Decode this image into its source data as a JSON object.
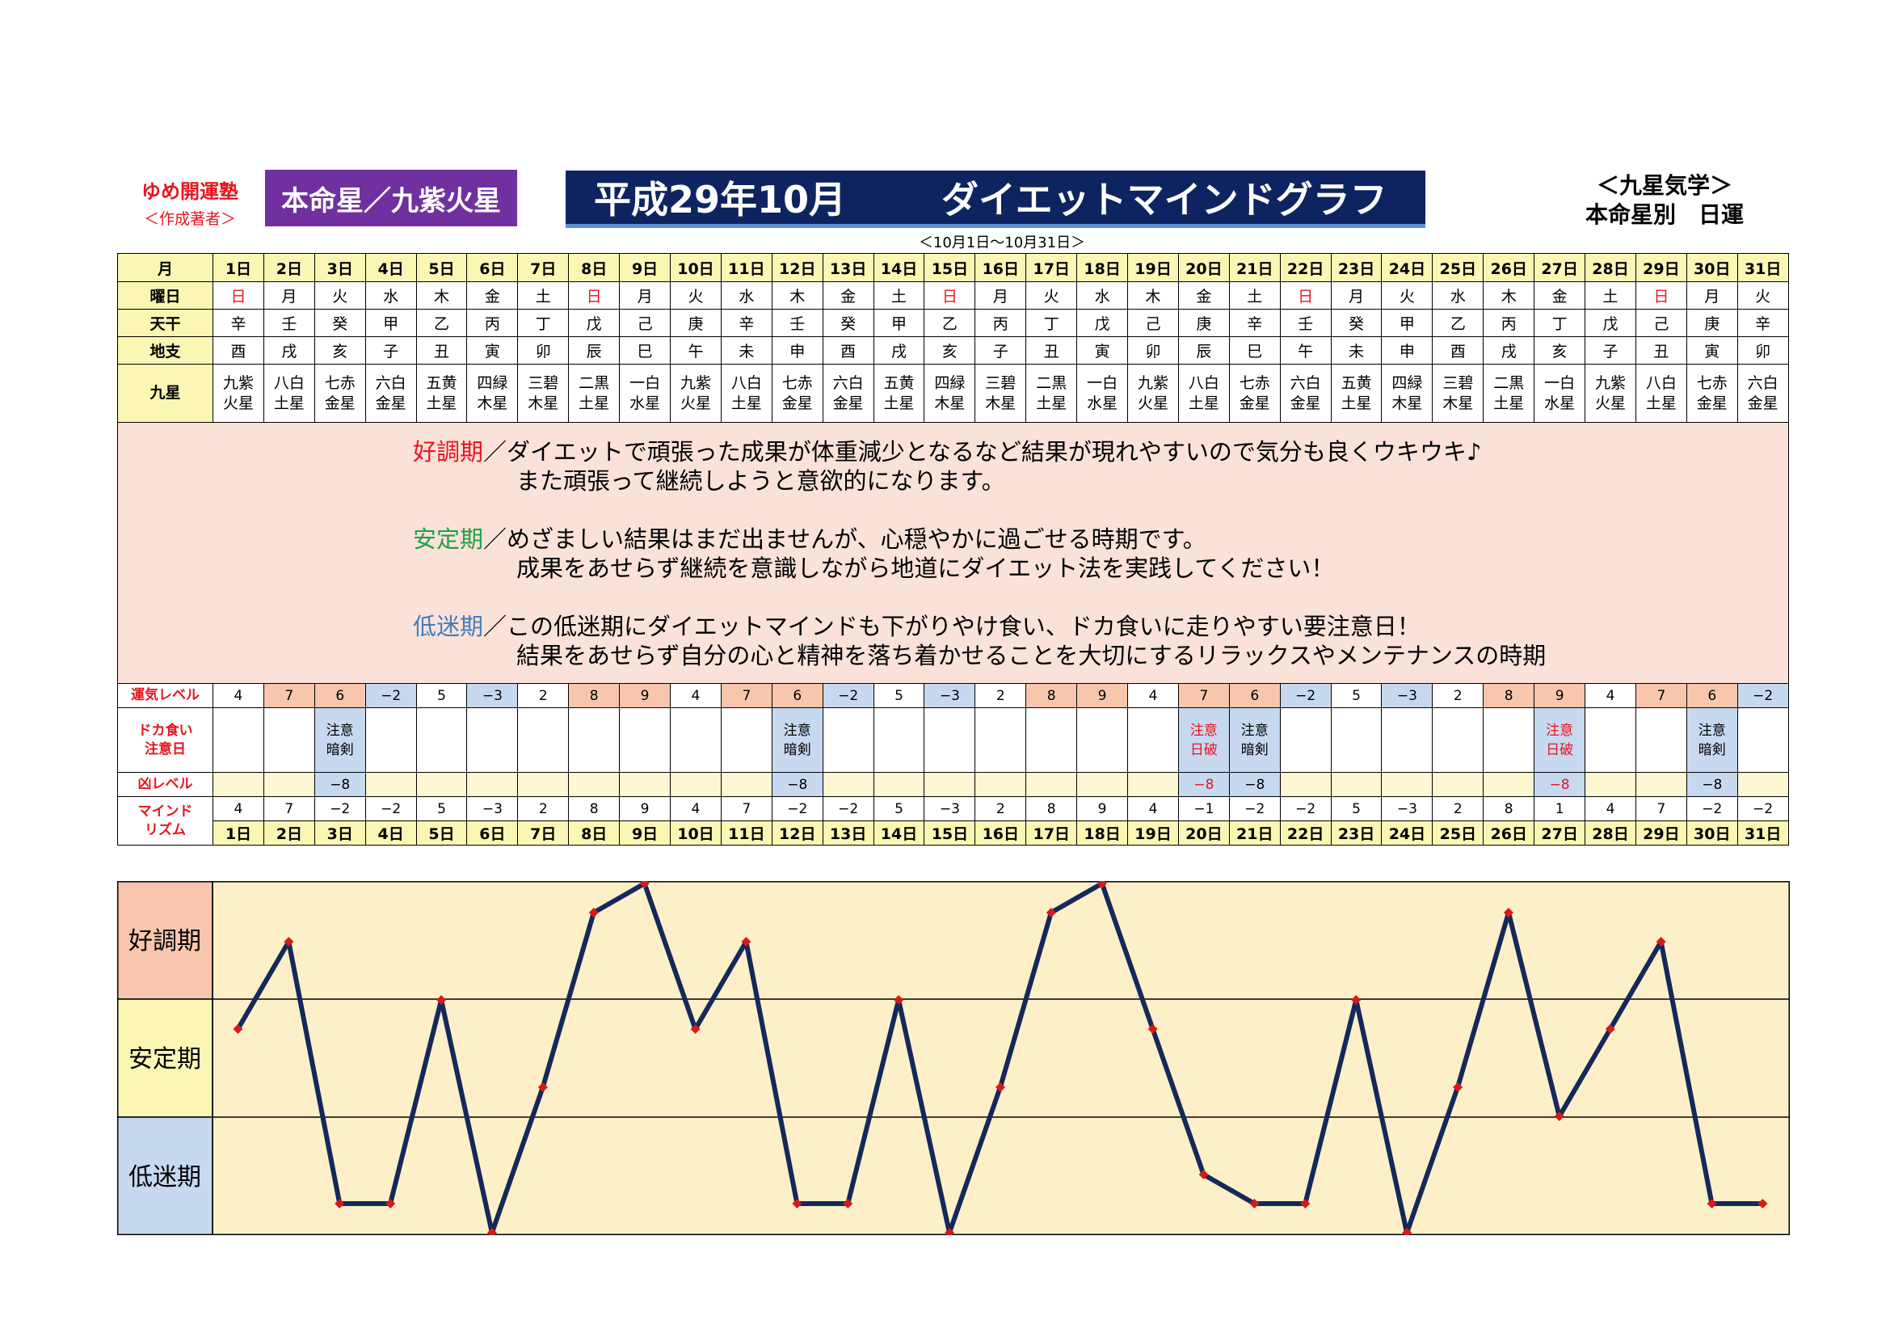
{
  "header": {
    "brand": "ゆめ開運塾",
    "brand_sub": "＜作成著者＞",
    "honmei_label": "本命星／九紫火星",
    "title_left": "平成29年10月",
    "title_right": "ダイエットマインドグラフ",
    "period": "＜10月1日〜10月31日＞",
    "corner_line1": "＜九星気学＞",
    "corner_line2": "本命星別　日運"
  },
  "row_labels": {
    "month": "月",
    "weekday": "曜日",
    "tenkan": "天干",
    "chishi": "地支",
    "kyusei": "九星",
    "unki": "運気レベル",
    "dokagui_1": "ドカ食い",
    "dokagui_2": "注意日",
    "kyo": "凶レベル",
    "mind_1": "マインド",
    "mind_2": "リズム"
  },
  "days": [
    {
      "date": "1日",
      "weekday": "日",
      "tenkan": "辛",
      "chishi": "酉",
      "star1": "九紫",
      "star2": "火星",
      "unki": "4",
      "warn1": "",
      "warn2": "",
      "kyo": "",
      "mind": 4
    },
    {
      "date": "2日",
      "weekday": "月",
      "tenkan": "壬",
      "chishi": "戌",
      "star1": "八白",
      "star2": "土星",
      "unki": "7",
      "warn1": "",
      "warn2": "",
      "kyo": "",
      "mind": 7
    },
    {
      "date": "3日",
      "weekday": "火",
      "tenkan": "癸",
      "chishi": "亥",
      "star1": "七赤",
      "star2": "金星",
      "unki": "6",
      "warn1": "注意",
      "warn2": "暗剣",
      "kyo": "−8",
      "mind": -2
    },
    {
      "date": "4日",
      "weekday": "水",
      "tenkan": "甲",
      "chishi": "子",
      "star1": "六白",
      "star2": "金星",
      "unki": "−2",
      "warn1": "",
      "warn2": "",
      "kyo": "",
      "mind": -2
    },
    {
      "date": "5日",
      "weekday": "木",
      "tenkan": "乙",
      "chishi": "丑",
      "star1": "五黄",
      "star2": "土星",
      "unki": "5",
      "warn1": "",
      "warn2": "",
      "kyo": "",
      "mind": 5
    },
    {
      "date": "6日",
      "weekday": "金",
      "tenkan": "丙",
      "chishi": "寅",
      "star1": "四緑",
      "star2": "木星",
      "unki": "−3",
      "warn1": "",
      "warn2": "",
      "kyo": "",
      "mind": -3
    },
    {
      "date": "7日",
      "weekday": "土",
      "tenkan": "丁",
      "chishi": "卯",
      "star1": "三碧",
      "star2": "木星",
      "unki": "2",
      "warn1": "",
      "warn2": "",
      "kyo": "",
      "mind": 2
    },
    {
      "date": "8日",
      "weekday": "日",
      "tenkan": "戊",
      "chishi": "辰",
      "star1": "二黒",
      "star2": "土星",
      "unki": "8",
      "warn1": "",
      "warn2": "",
      "kyo": "",
      "mind": 8
    },
    {
      "date": "9日",
      "weekday": "月",
      "tenkan": "己",
      "chishi": "巳",
      "star1": "一白",
      "star2": "水星",
      "unki": "9",
      "warn1": "",
      "warn2": "",
      "kyo": "",
      "mind": 9
    },
    {
      "date": "10日",
      "weekday": "火",
      "tenkan": "庚",
      "chishi": "午",
      "star1": "九紫",
      "star2": "火星",
      "unki": "4",
      "warn1": "",
      "warn2": "",
      "kyo": "",
      "mind": 4
    },
    {
      "date": "11日",
      "weekday": "水",
      "tenkan": "辛",
      "chishi": "未",
      "star1": "八白",
      "star2": "土星",
      "unki": "7",
      "warn1": "",
      "warn2": "",
      "kyo": "",
      "mind": 7
    },
    {
      "date": "12日",
      "weekday": "木",
      "tenkan": "壬",
      "chishi": "申",
      "star1": "七赤",
      "star2": "金星",
      "unki": "6",
      "warn1": "注意",
      "warn2": "暗剣",
      "kyo": "−8",
      "mind": -2
    },
    {
      "date": "13日",
      "weekday": "金",
      "tenkan": "癸",
      "chishi": "酉",
      "star1": "六白",
      "star2": "金星",
      "unki": "−2",
      "warn1": "",
      "warn2": "",
      "kyo": "",
      "mind": -2
    },
    {
      "date": "14日",
      "weekday": "土",
      "tenkan": "甲",
      "chishi": "戌",
      "star1": "五黄",
      "star2": "土星",
      "unki": "5",
      "warn1": "",
      "warn2": "",
      "kyo": "",
      "mind": 5
    },
    {
      "date": "15日",
      "weekday": "日",
      "tenkan": "乙",
      "chishi": "亥",
      "star1": "四緑",
      "star2": "木星",
      "unki": "−3",
      "warn1": "",
      "warn2": "",
      "kyo": "",
      "mind": -3
    },
    {
      "date": "16日",
      "weekday": "月",
      "tenkan": "丙",
      "chishi": "子",
      "star1": "三碧",
      "star2": "木星",
      "unki": "2",
      "warn1": "",
      "warn2": "",
      "kyo": "",
      "mind": 2
    },
    {
      "date": "17日",
      "weekday": "火",
      "tenkan": "丁",
      "chishi": "丑",
      "star1": "二黒",
      "star2": "土星",
      "unki": "8",
      "warn1": "",
      "warn2": "",
      "kyo": "",
      "mind": 8
    },
    {
      "date": "18日",
      "weekday": "水",
      "tenkan": "戊",
      "chishi": "寅",
      "star1": "一白",
      "star2": "水星",
      "unki": "9",
      "warn1": "",
      "warn2": "",
      "kyo": "",
      "mind": 9
    },
    {
      "date": "19日",
      "weekday": "木",
      "tenkan": "己",
      "chishi": "卯",
      "star1": "九紫",
      "star2": "火星",
      "unki": "4",
      "warn1": "",
      "warn2": "",
      "kyo": "",
      "mind": 4
    },
    {
      "date": "20日",
      "weekday": "金",
      "tenkan": "庚",
      "chishi": "辰",
      "star1": "八白",
      "star2": "土星",
      "unki": "7",
      "warn1": "注意",
      "warn2": "日破",
      "kyo": "−8",
      "mind": -1
    },
    {
      "date": "21日",
      "weekday": "土",
      "tenkan": "辛",
      "chishi": "巳",
      "star1": "七赤",
      "star2": "金星",
      "unki": "6",
      "warn1": "注意",
      "warn2": "暗剣",
      "kyo": "−8",
      "mind": -2
    },
    {
      "date": "22日",
      "weekday": "日",
      "tenkan": "壬",
      "chishi": "午",
      "star1": "六白",
      "star2": "金星",
      "unki": "−2",
      "warn1": "",
      "warn2": "",
      "kyo": "",
      "mind": -2
    },
    {
      "date": "23日",
      "weekday": "月",
      "tenkan": "癸",
      "chishi": "未",
      "star1": "五黄",
      "star2": "土星",
      "unki": "5",
      "warn1": "",
      "warn2": "",
      "kyo": "",
      "mind": 5
    },
    {
      "date": "24日",
      "weekday": "火",
      "tenkan": "甲",
      "chishi": "申",
      "star1": "四緑",
      "star2": "木星",
      "unki": "−3",
      "warn1": "",
      "warn2": "",
      "kyo": "",
      "mind": -3
    },
    {
      "date": "25日",
      "weekday": "水",
      "tenkan": "乙",
      "chishi": "酉",
      "star1": "三碧",
      "star2": "木星",
      "unki": "2",
      "warn1": "",
      "warn2": "",
      "kyo": "",
      "mind": 2
    },
    {
      "date": "26日",
      "weekday": "木",
      "tenkan": "丙",
      "chishi": "戌",
      "star1": "二黒",
      "star2": "土星",
      "unki": "8",
      "warn1": "",
      "warn2": "",
      "kyo": "",
      "mind": 8
    },
    {
      "date": "27日",
      "weekday": "金",
      "tenkan": "丁",
      "chishi": "亥",
      "star1": "一白",
      "star2": "水星",
      "unki": "9",
      "warn1": "注意",
      "warn2": "日破",
      "kyo": "−8",
      "mind": 1
    },
    {
      "date": "28日",
      "weekday": "土",
      "tenkan": "戊",
      "chishi": "子",
      "star1": "九紫",
      "star2": "火星",
      "unki": "4",
      "warn1": "",
      "warn2": "",
      "kyo": "",
      "mind": 4
    },
    {
      "date": "29日",
      "weekday": "日",
      "tenkan": "己",
      "chishi": "丑",
      "star1": "八白",
      "star2": "土星",
      "unki": "7",
      "warn1": "",
      "warn2": "",
      "kyo": "",
      "mind": 7
    },
    {
      "date": "30日",
      "weekday": "月",
      "tenkan": "庚",
      "chishi": "寅",
      "star1": "七赤",
      "star2": "金星",
      "unki": "6",
      "warn1": "注意",
      "warn2": "暗剣",
      "kyo": "−8",
      "mind": -2
    },
    {
      "date": "31日",
      "weekday": "火",
      "tenkan": "辛",
      "chishi": "卯",
      "star1": "六白",
      "star2": "金星",
      "unki": "−2",
      "warn1": "",
      "warn2": "",
      "kyo": "",
      "mind": -2
    }
  ],
  "description": {
    "good_label": "好調期",
    "good_line1": "／ダイエットで頑張った成果が体重減少となるなど結果が現れやすいので気分も良くウキウキ♪",
    "good_line2": "また頑張って継続しようと意欲的になります。",
    "stable_label": "安定期",
    "stable_line1": "／めざましい結果はまだ出ませんが、心穏やかに過ごせる時期です。",
    "stable_line2": "成果をあせらず継続を意識しながら地道にダイエット法を実践してください！",
    "low_label": "低迷期",
    "low_line1": "／この低迷期にダイエットマインドも下がりやけ食い、ドカ食いに走りやすい要注意日！",
    "low_line2": "結果をあせらず自分の心と精神を落ち着かせることを大切にするリラックスやメンテナンスの時期"
  },
  "chart_data": {
    "type": "line",
    "categories": [
      "1日",
      "2日",
      "3日",
      "4日",
      "5日",
      "6日",
      "7日",
      "8日",
      "9日",
      "10日",
      "11日",
      "12日",
      "13日",
      "14日",
      "15日",
      "16日",
      "17日",
      "18日",
      "19日",
      "20日",
      "21日",
      "22日",
      "23日",
      "24日",
      "25日",
      "26日",
      "27日",
      "28日",
      "29日",
      "30日",
      "31日"
    ],
    "series": [
      {
        "values": [
          4,
          7,
          -2,
          -2,
          5,
          -3,
          2,
          8,
          9,
          4,
          7,
          -2,
          -2,
          5,
          -3,
          2,
          8,
          9,
          4,
          -1,
          -2,
          -2,
          5,
          -3,
          2,
          8,
          1,
          4,
          7,
          -2,
          -2
        ]
      }
    ],
    "band_labels": [
      "好調期",
      "安定期",
      "低迷期"
    ],
    "band_colors": [
      "#f7c6ad",
      "#fbf6b4",
      "#c7d9ef"
    ],
    "ylim": [
      -3,
      9
    ],
    "line_color": "#14285a",
    "marker_color": "#d61a1a",
    "plot_background": "#fdf0c8"
  },
  "colors": {
    "honmei_bg": "#7030a0",
    "title_bg": "#0e2461",
    "good": "#f7c6ad",
    "bad": "#c7d9ef",
    "header_yellow": "#fbf6b4",
    "desc_bg": "#fbe2d8",
    "red_text": "#e8141e"
  }
}
